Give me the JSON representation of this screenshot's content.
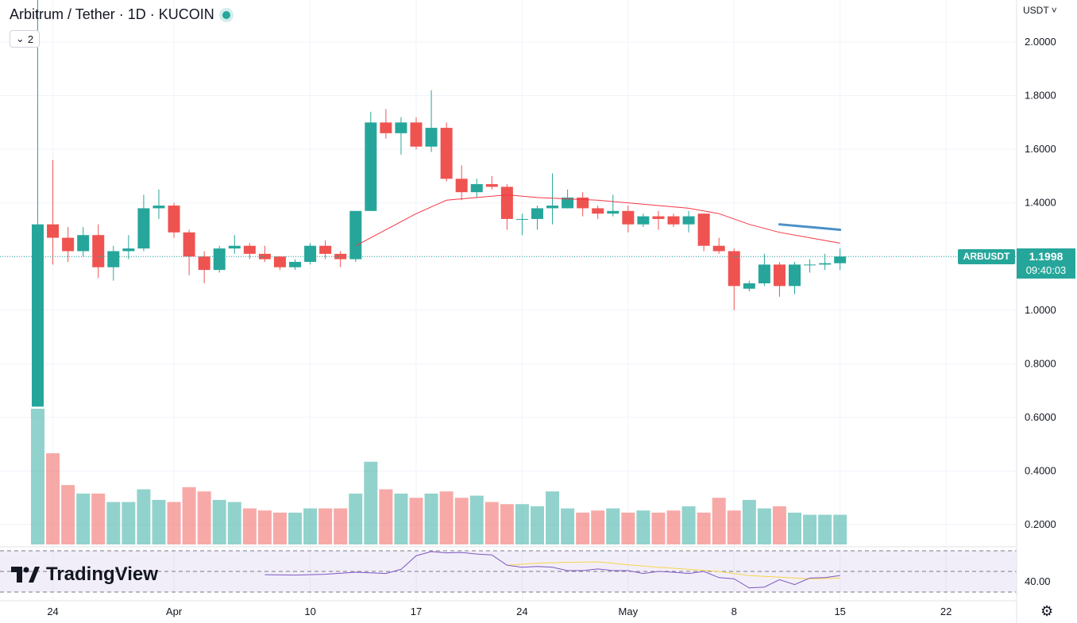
{
  "header": {
    "symbol_title": "Arbitrum / Tether · 1D · KUCOIN",
    "indicators_toggle": "2",
    "currency": "USDT"
  },
  "price_badge": {
    "symbol": "ARBUSDT",
    "price": "1.1998",
    "countdown": "09:40:03"
  },
  "rsi_label": "40.00",
  "logo_text": "TradingView",
  "colors": {
    "up": "#26a69a",
    "down": "#ef5350",
    "ma": "#f23645",
    "rsi": "#7e57c2",
    "rsi_ma": "#f5d54b",
    "trendline": "#4a90c8"
  },
  "chart_data": {
    "type": "candlestick",
    "price_axis": {
      "ticks": [
        "2.0000",
        "1.8000",
        "1.6000",
        "1.4000",
        "1.2000",
        "1.0000",
        "0.8000",
        "0.6000",
        "0.4000",
        "0.2000"
      ],
      "range": [
        0.1,
        2.05
      ]
    },
    "time_axis": {
      "ticks": [
        "24",
        "Apr",
        "10",
        "17",
        "24",
        "May",
        "8",
        "15",
        "22"
      ]
    },
    "candles": [
      {
        "d": "Mar 23",
        "o": 0.64,
        "h": 2.3,
        "l": 0.64,
        "c": 1.32
      },
      {
        "d": "Mar 24",
        "o": 1.32,
        "h": 1.56,
        "l": 1.17,
        "c": 1.27
      },
      {
        "d": "Mar 25",
        "o": 1.27,
        "h": 1.31,
        "l": 1.18,
        "c": 1.22
      },
      {
        "d": "Mar 26",
        "o": 1.22,
        "h": 1.31,
        "l": 1.2,
        "c": 1.28
      },
      {
        "d": "Mar 27",
        "o": 1.28,
        "h": 1.32,
        "l": 1.12,
        "c": 1.16
      },
      {
        "d": "Mar 28",
        "o": 1.16,
        "h": 1.24,
        "l": 1.11,
        "c": 1.22
      },
      {
        "d": "Mar 29",
        "o": 1.22,
        "h": 1.28,
        "l": 1.19,
        "c": 1.23
      },
      {
        "d": "Mar 30",
        "o": 1.23,
        "h": 1.43,
        "l": 1.22,
        "c": 1.38
      },
      {
        "d": "Mar 31",
        "o": 1.38,
        "h": 1.45,
        "l": 1.34,
        "c": 1.39
      },
      {
        "d": "Apr 1",
        "o": 1.39,
        "h": 1.4,
        "l": 1.27,
        "c": 1.29
      },
      {
        "d": "Apr 2",
        "o": 1.29,
        "h": 1.3,
        "l": 1.13,
        "c": 1.2
      },
      {
        "d": "Apr 3",
        "o": 1.2,
        "h": 1.22,
        "l": 1.1,
        "c": 1.15
      },
      {
        "d": "Apr 4",
        "o": 1.15,
        "h": 1.24,
        "l": 1.14,
        "c": 1.23
      },
      {
        "d": "Apr 5",
        "o": 1.23,
        "h": 1.28,
        "l": 1.21,
        "c": 1.24
      },
      {
        "d": "Apr 6",
        "o": 1.24,
        "h": 1.25,
        "l": 1.19,
        "c": 1.21
      },
      {
        "d": "Apr 7",
        "o": 1.21,
        "h": 1.24,
        "l": 1.18,
        "c": 1.19
      },
      {
        "d": "Apr 8",
        "o": 1.2,
        "h": 1.2,
        "l": 1.15,
        "c": 1.16
      },
      {
        "d": "Apr 9",
        "o": 1.16,
        "h": 1.19,
        "l": 1.15,
        "c": 1.18
      },
      {
        "d": "Apr 10",
        "o": 1.18,
        "h": 1.25,
        "l": 1.17,
        "c": 1.24
      },
      {
        "d": "Apr 11",
        "o": 1.24,
        "h": 1.26,
        "l": 1.19,
        "c": 1.21
      },
      {
        "d": "Apr 12",
        "o": 1.21,
        "h": 1.22,
        "l": 1.16,
        "c": 1.19
      },
      {
        "d": "Apr 13",
        "o": 1.19,
        "h": 1.37,
        "l": 1.18,
        "c": 1.37
      },
      {
        "d": "Apr 14",
        "o": 1.37,
        "h": 1.74,
        "l": 1.37,
        "c": 1.7
      },
      {
        "d": "Apr 15",
        "o": 1.7,
        "h": 1.75,
        "l": 1.64,
        "c": 1.66
      },
      {
        "d": "Apr 16",
        "o": 1.66,
        "h": 1.72,
        "l": 1.58,
        "c": 1.7
      },
      {
        "d": "Apr 17",
        "o": 1.7,
        "h": 1.72,
        "l": 1.6,
        "c": 1.61
      },
      {
        "d": "Apr 18",
        "o": 1.61,
        "h": 1.82,
        "l": 1.59,
        "c": 1.68
      },
      {
        "d": "Apr 19",
        "o": 1.68,
        "h": 1.7,
        "l": 1.48,
        "c": 1.49
      },
      {
        "d": "Apr 20",
        "o": 1.49,
        "h": 1.54,
        "l": 1.41,
        "c": 1.44
      },
      {
        "d": "Apr 21",
        "o": 1.44,
        "h": 1.49,
        "l": 1.42,
        "c": 1.47
      },
      {
        "d": "Apr 22",
        "o": 1.47,
        "h": 1.5,
        "l": 1.45,
        "c": 1.46
      },
      {
        "d": "Apr 23",
        "o": 1.46,
        "h": 1.47,
        "l": 1.3,
        "c": 1.34
      },
      {
        "d": "Apr 24",
        "o": 1.34,
        "h": 1.36,
        "l": 1.28,
        "c": 1.34
      },
      {
        "d": "Apr 25",
        "o": 1.34,
        "h": 1.39,
        "l": 1.3,
        "c": 1.38
      },
      {
        "d": "Apr 26",
        "o": 1.38,
        "h": 1.51,
        "l": 1.32,
        "c": 1.39
      },
      {
        "d": "Apr 27",
        "o": 1.38,
        "h": 1.45,
        "l": 1.38,
        "c": 1.42
      },
      {
        "d": "Apr 28",
        "o": 1.42,
        "h": 1.44,
        "l": 1.35,
        "c": 1.38
      },
      {
        "d": "Apr 29",
        "o": 1.38,
        "h": 1.39,
        "l": 1.34,
        "c": 1.36
      },
      {
        "d": "Apr 30",
        "o": 1.36,
        "h": 1.43,
        "l": 1.35,
        "c": 1.37
      },
      {
        "d": "May 1",
        "o": 1.37,
        "h": 1.39,
        "l": 1.29,
        "c": 1.32
      },
      {
        "d": "May 2",
        "o": 1.32,
        "h": 1.36,
        "l": 1.31,
        "c": 1.35
      },
      {
        "d": "May 3",
        "o": 1.35,
        "h": 1.37,
        "l": 1.3,
        "c": 1.34
      },
      {
        "d": "May 4",
        "o": 1.35,
        "h": 1.36,
        "l": 1.31,
        "c": 1.32
      },
      {
        "d": "May 5",
        "o": 1.32,
        "h": 1.37,
        "l": 1.29,
        "c": 1.35
      },
      {
        "d": "May 6",
        "o": 1.36,
        "h": 1.36,
        "l": 1.22,
        "c": 1.24
      },
      {
        "d": "May 7",
        "o": 1.24,
        "h": 1.27,
        "l": 1.21,
        "c": 1.22
      },
      {
        "d": "May 8",
        "o": 1.22,
        "h": 1.23,
        "l": 1.0,
        "c": 1.09
      },
      {
        "d": "May 9",
        "o": 1.08,
        "h": 1.11,
        "l": 1.07,
        "c": 1.1
      },
      {
        "d": "May 10",
        "o": 1.1,
        "h": 1.21,
        "l": 1.09,
        "c": 1.17
      },
      {
        "d": "May 11",
        "o": 1.17,
        "h": 1.18,
        "l": 1.05,
        "c": 1.09
      },
      {
        "d": "May 12",
        "o": 1.09,
        "h": 1.18,
        "l": 1.06,
        "c": 1.17
      },
      {
        "d": "May 13",
        "o": 1.17,
        "h": 1.19,
        "l": 1.14,
        "c": 1.17
      },
      {
        "d": "May 14",
        "o": 1.17,
        "h": 1.21,
        "l": 1.15,
        "c": 1.175
      },
      {
        "d": "May 15",
        "o": 1.175,
        "h": 1.23,
        "l": 1.15,
        "c": 1.1998
      }
    ],
    "volume": [
      0.64,
      0.43,
      0.28,
      0.24,
      0.24,
      0.2,
      0.2,
      0.26,
      0.21,
      0.2,
      0.27,
      0.25,
      0.21,
      0.2,
      0.17,
      0.16,
      0.15,
      0.15,
      0.17,
      0.17,
      0.17,
      0.24,
      0.39,
      0.26,
      0.24,
      0.22,
      0.24,
      0.25,
      0.22,
      0.23,
      0.2,
      0.19,
      0.19,
      0.18,
      0.25,
      0.17,
      0.15,
      0.16,
      0.17,
      0.15,
      0.16,
      0.15,
      0.16,
      0.18,
      0.15,
      0.22,
      0.16,
      0.21,
      0.17,
      0.18,
      0.15,
      0.14,
      0.14,
      0.14
    ],
    "ma": [
      [
        21,
        1.24
      ],
      [
        23,
        1.3
      ],
      [
        25,
        1.36
      ],
      [
        27,
        1.41
      ],
      [
        29,
        1.42
      ],
      [
        31,
        1.43
      ],
      [
        33,
        1.42
      ],
      [
        35,
        1.415
      ],
      [
        37,
        1.41
      ],
      [
        39,
        1.4
      ],
      [
        41,
        1.39
      ],
      [
        43,
        1.38
      ],
      [
        45,
        1.36
      ],
      [
        47,
        1.32
      ],
      [
        49,
        1.29
      ],
      [
        51,
        1.27
      ],
      [
        53,
        1.25
      ]
    ],
    "rsi": [
      [
        15,
        0.42
      ],
      [
        17,
        0.41
      ],
      [
        19,
        0.43
      ],
      [
        21,
        0.48
      ],
      [
        23,
        0.45
      ],
      [
        24,
        0.55
      ],
      [
        25,
        0.88
      ],
      [
        26,
        0.98
      ],
      [
        27,
        0.95
      ],
      [
        28,
        0.96
      ],
      [
        29,
        0.92
      ],
      [
        30,
        0.9
      ],
      [
        31,
        0.65
      ],
      [
        32,
        0.6
      ],
      [
        33,
        0.62
      ],
      [
        34,
        0.6
      ],
      [
        35,
        0.52
      ],
      [
        36,
        0.52
      ],
      [
        37,
        0.56
      ],
      [
        38,
        0.52
      ],
      [
        39,
        0.52
      ],
      [
        40,
        0.45
      ],
      [
        41,
        0.5
      ],
      [
        42,
        0.48
      ],
      [
        43,
        0.45
      ],
      [
        44,
        0.5
      ],
      [
        45,
        0.35
      ],
      [
        46,
        0.32
      ],
      [
        47,
        0.1
      ],
      [
        48,
        0.12
      ],
      [
        49,
        0.3
      ],
      [
        50,
        0.18
      ],
      [
        51,
        0.34
      ],
      [
        52,
        0.35
      ],
      [
        53,
        0.4
      ]
    ],
    "rsi_ma": [
      [
        31,
        0.65
      ],
      [
        33,
        0.7
      ],
      [
        35,
        0.72
      ],
      [
        37,
        0.73
      ],
      [
        39,
        0.66
      ],
      [
        41,
        0.6
      ],
      [
        43,
        0.55
      ],
      [
        45,
        0.5
      ],
      [
        47,
        0.4
      ],
      [
        49,
        0.36
      ],
      [
        51,
        0.32
      ],
      [
        53,
        0.34
      ]
    ],
    "trendline": [
      [
        49,
        1.32
      ],
      [
        53,
        1.3
      ]
    ]
  }
}
